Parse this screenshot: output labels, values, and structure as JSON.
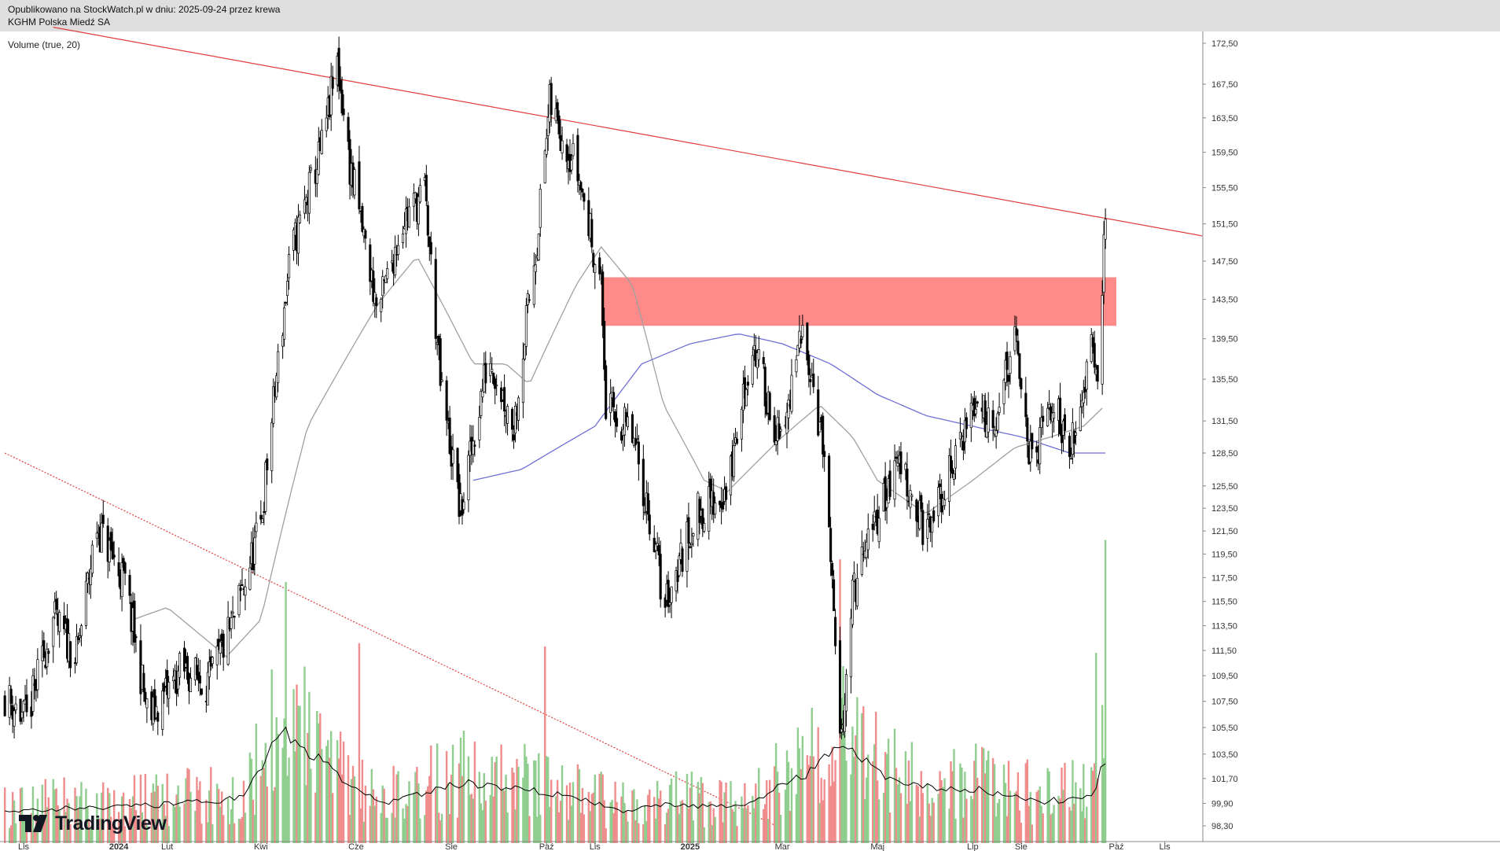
{
  "header": {
    "line1": "Opublikowano na StockWatch.pl w dniu: 2025-09-24 przez krewa",
    "line2": "KGHM Polska Miedź SA"
  },
  "indicator_label": "Volume (true, 20)",
  "brand": "TradingView",
  "colors": {
    "up": "#26a69a",
    "vol_up": "#8fce8f",
    "vol_down": "#f08c8c",
    "trendline": "#e03c3c",
    "zone": "#ff8a8a",
    "ma_fast": "#a0a0a0",
    "ma_slow": "#6f6fd6",
    "vol_ma": "#000000"
  },
  "chart_data": {
    "type": "candlestick",
    "x_ticks": [
      {
        "label": "Lis",
        "date": "2023-11"
      },
      {
        "label": "2024",
        "date": "2024-01",
        "bold": true
      },
      {
        "label": "Lut",
        "date": "2024-02"
      },
      {
        "label": "Kwi",
        "date": "2024-04"
      },
      {
        "label": "Cze",
        "date": "2024-06"
      },
      {
        "label": "Sie",
        "date": "2024-08"
      },
      {
        "label": "Paź",
        "date": "2024-10"
      },
      {
        "label": "Lis",
        "date": "2024-11"
      },
      {
        "label": "2025",
        "date": "2025-01",
        "bold": true
      },
      {
        "label": "Mar",
        "date": "2025-03"
      },
      {
        "label": "Maj",
        "date": "2025-05"
      },
      {
        "label": "Lip",
        "date": "2025-07"
      },
      {
        "label": "Sie",
        "date": "2025-08"
      },
      {
        "label": "Paź",
        "date": "2025-10"
      },
      {
        "label": "Lis",
        "date": "2025-11"
      }
    ],
    "y_ticks": [
      "172,50",
      "167,50",
      "163,50",
      "159,50",
      "155,50",
      "151,50",
      "147,50",
      "143,50",
      "139,50",
      "135,50",
      "131,50",
      "128,50",
      "125,50",
      "123,50",
      "121,50",
      "119,50",
      "117,50",
      "115,50",
      "113,50",
      "111,50",
      "109,50",
      "107,50",
      "105,50",
      "103,50",
      "101,70",
      "99,90",
      "98,30"
    ],
    "price_path": [
      {
        "date": "2023-10-20",
        "close": 108
      },
      {
        "date": "2023-11-03",
        "close": 106
      },
      {
        "date": "2023-11-20",
        "close": 114
      },
      {
        "date": "2023-12-05",
        "close": 111
      },
      {
        "date": "2023-12-18",
        "close": 122
      },
      {
        "date": "2024-01-05",
        "close": 117
      },
      {
        "date": "2024-01-20",
        "close": 106
      },
      {
        "date": "2024-02-10",
        "close": 110
      },
      {
        "date": "2024-02-28",
        "close": 109
      },
      {
        "date": "2024-03-15",
        "close": 114
      },
      {
        "date": "2024-04-01",
        "close": 122
      },
      {
        "date": "2024-04-20",
        "close": 148
      },
      {
        "date": "2024-05-10",
        "close": 160
      },
      {
        "date": "2024-05-20",
        "close": 170
      },
      {
        "date": "2024-05-28",
        "close": 158
      },
      {
        "date": "2024-06-15",
        "close": 142
      },
      {
        "date": "2024-07-01",
        "close": 152
      },
      {
        "date": "2024-07-15",
        "close": 155
      },
      {
        "date": "2024-07-25",
        "close": 135
      },
      {
        "date": "2024-08-07",
        "close": 123
      },
      {
        "date": "2024-08-25",
        "close": 138
      },
      {
        "date": "2024-09-10",
        "close": 131
      },
      {
        "date": "2024-09-25",
        "close": 150
      },
      {
        "date": "2024-10-03",
        "close": 165
      },
      {
        "date": "2024-10-20",
        "close": 158
      },
      {
        "date": "2024-11-05",
        "close": 145
      },
      {
        "date": "2024-11-08",
        "close": 133
      },
      {
        "date": "2024-11-25",
        "close": 130
      },
      {
        "date": "2024-12-10",
        "close": 120
      },
      {
        "date": "2024-12-15",
        "close": 115
      },
      {
        "date": "2025-01-05",
        "close": 123
      },
      {
        "date": "2025-01-25",
        "close": 125
      },
      {
        "date": "2025-02-10",
        "close": 139
      },
      {
        "date": "2025-02-28",
        "close": 129
      },
      {
        "date": "2025-03-15",
        "close": 141
      },
      {
        "date": "2025-03-28",
        "close": 128
      },
      {
        "date": "2025-04-07",
        "close": 104
      },
      {
        "date": "2025-04-15",
        "close": 116
      },
      {
        "date": "2025-05-01",
        "close": 123
      },
      {
        "date": "2025-05-15",
        "close": 128
      },
      {
        "date": "2025-06-01",
        "close": 121
      },
      {
        "date": "2025-06-15",
        "close": 126
      },
      {
        "date": "2025-07-01",
        "close": 133
      },
      {
        "date": "2025-07-15",
        "close": 132
      },
      {
        "date": "2025-07-28",
        "close": 139
      },
      {
        "date": "2025-08-08",
        "close": 127
      },
      {
        "date": "2025-08-20",
        "close": 133
      },
      {
        "date": "2025-09-05",
        "close": 129
      },
      {
        "date": "2025-09-15",
        "close": 141
      },
      {
        "date": "2025-09-19",
        "close": 136
      },
      {
        "date": "2025-09-24",
        "close": 152
      }
    ],
    "ma_fast_path": [
      {
        "date": "2024-01-10",
        "value": 114
      },
      {
        "date": "2024-02-01",
        "value": 115
      },
      {
        "date": "2024-03-10",
        "value": 111
      },
      {
        "date": "2024-04-01",
        "value": 114
      },
      {
        "date": "2024-05-01",
        "value": 131
      },
      {
        "date": "2024-06-15",
        "value": 143
      },
      {
        "date": "2024-07-10",
        "value": 148
      },
      {
        "date": "2024-08-15",
        "value": 137
      },
      {
        "date": "2024-09-05",
        "value": 137
      },
      {
        "date": "2024-09-20",
        "value": 135
      },
      {
        "date": "2024-10-20",
        "value": 145
      },
      {
        "date": "2024-11-05",
        "value": 149
      },
      {
        "date": "2024-11-25",
        "value": 145
      },
      {
        "date": "2024-12-15",
        "value": 133
      },
      {
        "date": "2025-01-10",
        "value": 126
      },
      {
        "date": "2025-01-25",
        "value": 125
      },
      {
        "date": "2025-02-15",
        "value": 128
      },
      {
        "date": "2025-03-01",
        "value": 130
      },
      {
        "date": "2025-03-25",
        "value": 133
      },
      {
        "date": "2025-04-15",
        "value": 130
      },
      {
        "date": "2025-05-01",
        "value": 126
      },
      {
        "date": "2025-06-01",
        "value": 123
      },
      {
        "date": "2025-07-01",
        "value": 126
      },
      {
        "date": "2025-07-28",
        "value": 129
      },
      {
        "date": "2025-08-20",
        "value": 130
      },
      {
        "date": "2025-09-10",
        "value": 131
      },
      {
        "date": "2025-09-24",
        "value": 133
      }
    ],
    "ma_slow_path": [
      {
        "date": "2024-08-15",
        "value": 126
      },
      {
        "date": "2024-09-15",
        "value": 127
      },
      {
        "date": "2024-11-01",
        "value": 131
      },
      {
        "date": "2024-12-01",
        "value": 137
      },
      {
        "date": "2025-01-01",
        "value": 139
      },
      {
        "date": "2025-02-01",
        "value": 140
      },
      {
        "date": "2025-03-01",
        "value": 139
      },
      {
        "date": "2025-04-01",
        "value": 137
      },
      {
        "date": "2025-05-01",
        "value": 134
      },
      {
        "date": "2025-06-01",
        "value": 132
      },
      {
        "date": "2025-07-01",
        "value": 131
      },
      {
        "date": "2025-08-01",
        "value": 130
      },
      {
        "date": "2025-09-01",
        "value": 128.5
      },
      {
        "date": "2025-09-24",
        "value": 128.5
      }
    ],
    "resistance_zone": {
      "from": "2024-11-05",
      "to": "2025-10-01",
      "low": 140.8,
      "high": 145.8
    },
    "trendlines": [
      {
        "style": "solid",
        "from": {
          "date": "2023-11-20",
          "price": 174.5
        },
        "to": {
          "date": "2025-11-25",
          "price": 150.2
        }
      },
      {
        "style": "dotted",
        "from": {
          "date": "2023-10-20",
          "price": 128.5
        },
        "to": {
          "date": "2025-02-25",
          "price": 98.3
        }
      }
    ],
    "volume": {
      "path": [
        {
          "date": "2023-10-20",
          "value": 1.0
        },
        {
          "date": "2024-02-01",
          "value": 1.2
        },
        {
          "date": "2024-03-20",
          "value": 1.4
        },
        {
          "date": "2024-04-15",
          "value": 3.5
        },
        {
          "date": "2024-05-20",
          "value": 2.1
        },
        {
          "date": "2024-06-20",
          "value": 1.2
        },
        {
          "date": "2024-08-10",
          "value": 1.9
        },
        {
          "date": "2024-10-10",
          "value": 1.5
        },
        {
          "date": "2024-11-20",
          "value": 1.0
        },
        {
          "date": "2024-12-20",
          "value": 1.2
        },
        {
          "date": "2025-02-01",
          "value": 1.1
        },
        {
          "date": "2025-03-15",
          "value": 2.1
        },
        {
          "date": "2025-04-07",
          "value": 3.2
        },
        {
          "date": "2025-05-15",
          "value": 1.8
        },
        {
          "date": "2025-07-01",
          "value": 1.7
        },
        {
          "date": "2025-08-15",
          "value": 1.3
        },
        {
          "date": "2025-09-15",
          "value": 1.4
        },
        {
          "date": "2025-09-24",
          "value": 2.6
        }
      ],
      "peaks": [
        {
          "date": "2024-04-17",
          "value": 8.1,
          "dir": "up"
        },
        {
          "date": "2024-06-03",
          "value": 6.2,
          "dir": "down"
        },
        {
          "date": "2024-09-30",
          "value": 6.1,
          "dir": "down"
        },
        {
          "date": "2025-02-15",
          "value": 5.5,
          "dir": "up"
        },
        {
          "date": "2025-04-07",
          "value": 8.8,
          "dir": "down"
        },
        {
          "date": "2025-09-18",
          "value": 5.9,
          "dir": "up"
        },
        {
          "date": "2025-09-24",
          "value": 9.4,
          "dir": "up"
        }
      ],
      "max": 10
    },
    "y_axis": {
      "scale": "log"
    },
    "grid": false
  }
}
